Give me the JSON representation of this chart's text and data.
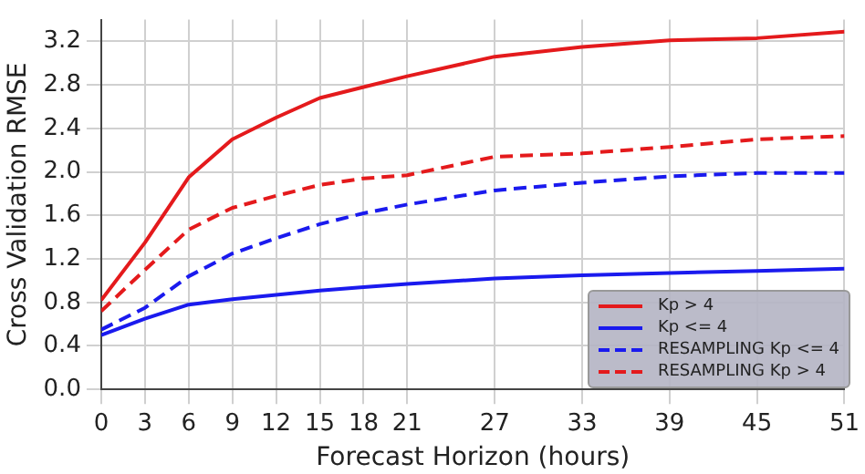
{
  "chart_data": {
    "type": "line",
    "xlabel": "Forecast Horizon (hours)",
    "ylabel": "Cross Validation RMSE",
    "x": [
      0,
      3,
      6,
      9,
      12,
      15,
      18,
      21,
      27,
      33,
      39,
      45,
      51
    ],
    "series": [
      {
        "name": "Kp > 4",
        "color": "#e41a1c",
        "line_style": "solid",
        "values": [
          0.82,
          1.35,
          1.95,
          2.3,
          2.5,
          2.68,
          2.78,
          2.88,
          3.06,
          3.15,
          3.21,
          3.23,
          3.29
        ]
      },
      {
        "name": "Kp <= 4",
        "color": "#1a1aee",
        "line_style": "solid",
        "values": [
          0.5,
          0.65,
          0.78,
          0.83,
          0.87,
          0.91,
          0.94,
          0.97,
          1.02,
          1.05,
          1.07,
          1.09,
          1.11
        ]
      },
      {
        "name": "RESAMPLING Kp <= 4",
        "color": "#1a1aee",
        "line_style": "dashed",
        "values": [
          0.55,
          0.75,
          1.04,
          1.25,
          1.39,
          1.52,
          1.62,
          1.7,
          1.83,
          1.9,
          1.96,
          1.99,
          1.99
        ]
      },
      {
        "name": "RESAMPLING Kp > 4",
        "color": "#e41a1c",
        "line_style": "dashed",
        "values": [
          0.72,
          1.1,
          1.47,
          1.67,
          1.78,
          1.88,
          1.94,
          1.97,
          2.14,
          2.17,
          2.23,
          2.3,
          2.33
        ]
      }
    ],
    "xlim": [
      0,
      51
    ],
    "xticks": [
      0,
      3,
      6,
      9,
      12,
      15,
      18,
      21,
      27,
      33,
      39,
      45,
      51
    ],
    "ylim": [
      0,
      3.4
    ],
    "yticks": [
      {
        "value": 0,
        "label": "0.0"
      },
      {
        "value": 0.4,
        "label": "0.4"
      },
      {
        "value": 0.8,
        "label": "0.8"
      },
      {
        "value": 1.2,
        "label": "1.2"
      },
      {
        "value": 1.6,
        "label": "1.6"
      },
      {
        "value": 2.0,
        "label": "2.0"
      },
      {
        "value": 2.4,
        "label": "2.4"
      },
      {
        "value": 2.8,
        "label": "2.8"
      },
      {
        "value": 3.2,
        "label": "3.2"
      }
    ],
    "grid": true,
    "legend": "bottom right",
    "marker": "none"
  }
}
